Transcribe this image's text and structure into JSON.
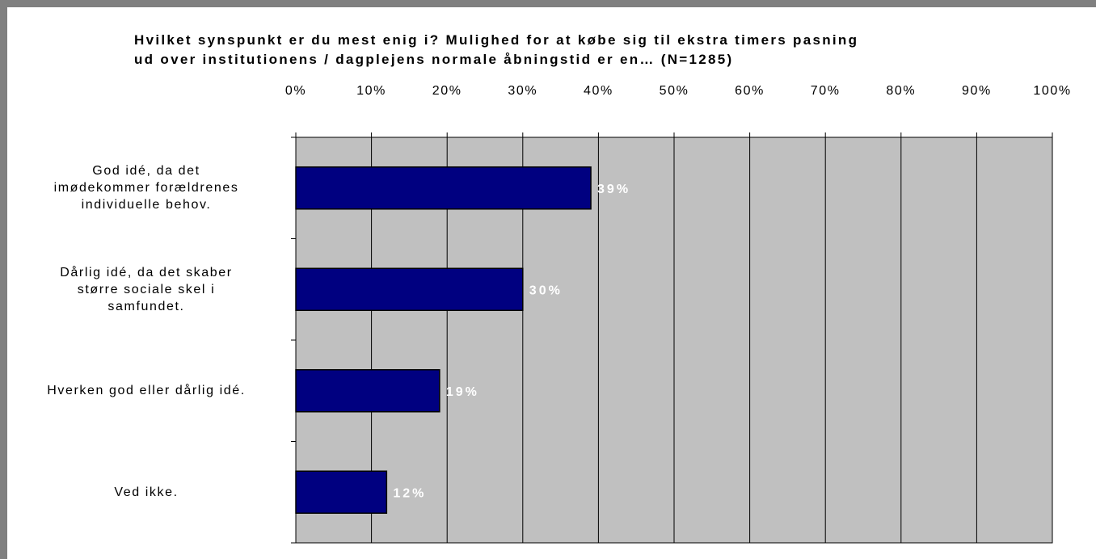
{
  "chart_data": {
    "type": "bar",
    "orientation": "horizontal",
    "title_lines": [
      "Hvilket synspunkt er du mest enig i? Mulighed for at købe sig til ekstra timers pasning",
      "ud over institutionens /  dagplejens normale åbningstid er en… (N=1285)"
    ],
    "categories": [
      [
        "God idé, da det",
        "imødekommer forældrenes",
        "individuelle behov."
      ],
      [
        "Dårlig idé, da det skaber",
        "større sociale skel i",
        "samfundet."
      ],
      [
        "Hverken god eller dårlig idé."
      ],
      [
        "Ved ikke."
      ]
    ],
    "values": [
      39,
      30,
      19,
      12
    ],
    "data_labels": [
      "39%",
      "30%",
      "19%",
      "12%"
    ],
    "xlim": [
      0,
      100
    ],
    "x_ticks": [
      "0%",
      "10%",
      "20%",
      "30%",
      "40%",
      "50%",
      "60%",
      "70%",
      "80%",
      "90%",
      "100%"
    ],
    "axis_position": "top",
    "grid": true,
    "colors": {
      "bar": "#000080",
      "plot_background": "#c0c0c0",
      "data_label": "#ffffff",
      "frame": "#808080"
    }
  }
}
